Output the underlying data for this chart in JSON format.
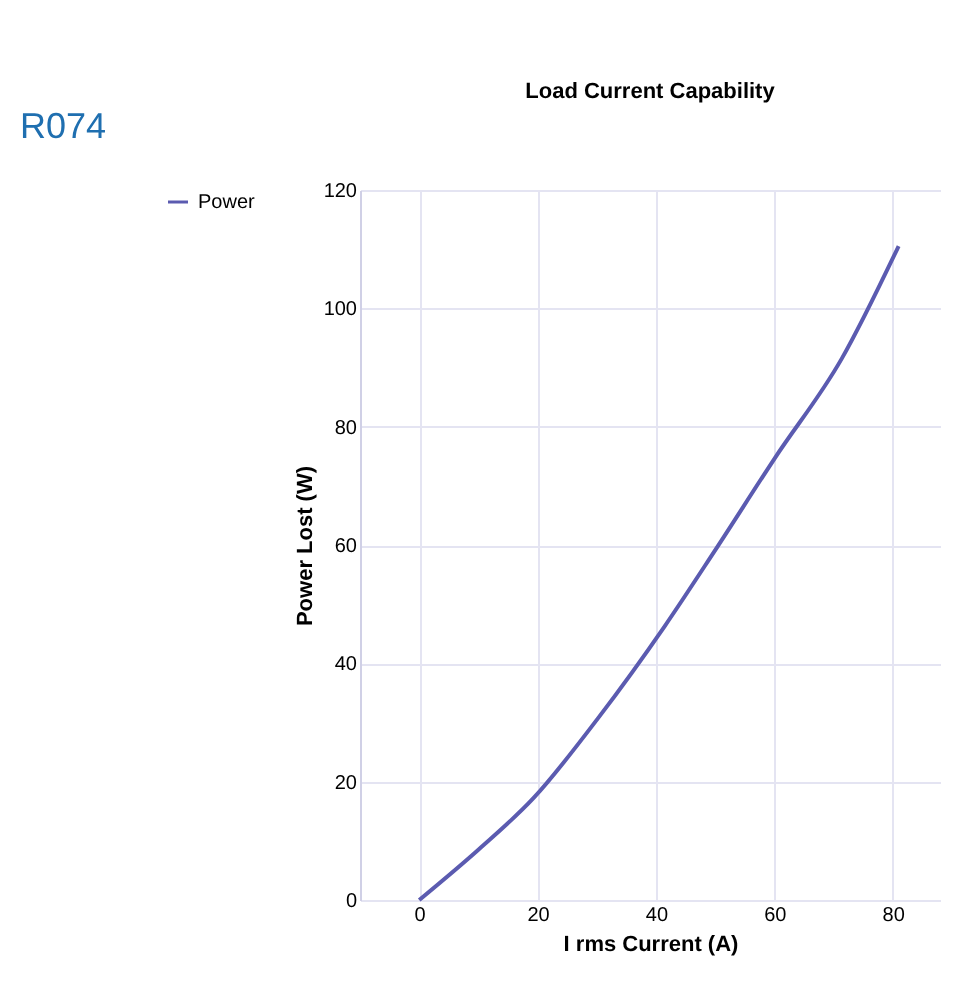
{
  "chart_data": {
    "type": "line",
    "title": "Load Current Capability",
    "xlabel": "I rms Current (A)",
    "ylabel": "Power Lost (W)",
    "annotations": [
      "R074"
    ],
    "x": [
      0,
      10,
      19.3,
      30.2,
      41.5,
      49.8,
      60.1,
      71.4,
      81
    ],
    "series": [
      {
        "name": "Power",
        "color": "#5b5bb0",
        "values": [
          0,
          8.5,
          17.2,
          30.7,
          46.3,
          58.8,
          74.7,
          91.5,
          110.5
        ]
      }
    ],
    "xlim": [
      -10,
      88
    ],
    "xticks": [
      0,
      20,
      40,
      60,
      80
    ],
    "ylim": [
      0,
      120
    ],
    "yticks": [
      0,
      20,
      40,
      60,
      80,
      100,
      120
    ],
    "grid": true,
    "legend": "left",
    "line_style": "solid"
  }
}
